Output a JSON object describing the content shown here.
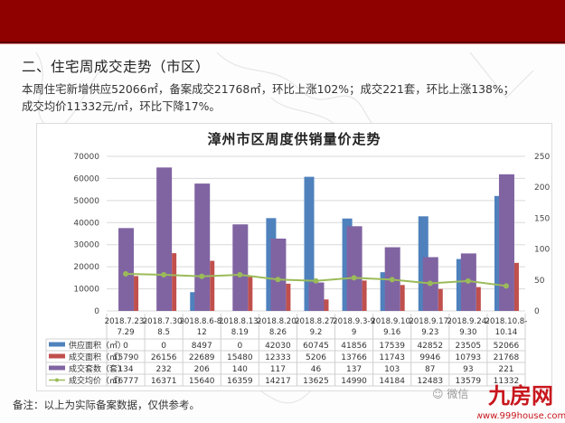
{
  "header": {
    "banner_color": "#8f0000"
  },
  "section": {
    "title": "二、住宅周成交走势（市区）",
    "summary_line1": "本周住宅新增供应52066㎡，备案成交21768㎡，环比上涨102%；成交221套，环比上涨138%；",
    "summary_line2": "成交均价11332元/㎡，环比下降17%。"
  },
  "footer": {
    "note": "备注：以上为实际备案数据，仅供参考。",
    "wechat_label": "微信",
    "logo_text": "九房网",
    "logo_url_text": "www.999house.com"
  },
  "colors": {
    "supply": "#4f81bd",
    "deal_area": "#c0504d",
    "deal_units": "#8064a2",
    "avg_price": "#9bbb59",
    "grid": "#d9d9d9"
  },
  "chart_data": {
    "type": "bar",
    "title": "漳州市区周度供销量价走势",
    "categories": [
      "2018.7.23-7.29",
      "2018.7.30-8.5",
      "2018.8.6-8.12",
      "2018.8.13-8.19",
      "2018.8.20-8.26",
      "2018.8.27-9.2",
      "2018.9.3-9.9",
      "2018.9.10-9.16",
      "2018.9.17-9.23",
      "2018.9.24-9.30",
      "2018.10.8-10.14"
    ],
    "category_lines": [
      [
        "2018.7.23-",
        "7.29"
      ],
      [
        "2018.7.30-",
        "8.5"
      ],
      [
        "2018.8.6-8.",
        "12"
      ],
      [
        "2018.8.13-",
        "8.19"
      ],
      [
        "2018.8.20-",
        "8.26"
      ],
      [
        "2018.8.27-",
        "9.2"
      ],
      [
        "2018.9.3-9",
        "9"
      ],
      [
        "2018.9.10-",
        "9.16"
      ],
      [
        "2018.9.17-",
        "9.23"
      ],
      [
        "2018.9.24-",
        "9.30"
      ],
      [
        "2018.10.8-",
        "10.14"
      ]
    ],
    "series": [
      {
        "name": "供应面积（㎡）",
        "type": "bar",
        "axis": "left",
        "values": [
          0,
          0,
          8497,
          0,
          42030,
          60745,
          41856,
          17539,
          42852,
          23505,
          52066
        ]
      },
      {
        "name": "成交套数（套）",
        "type": "bar",
        "axis": "right",
        "values": [
          134,
          232,
          206,
          140,
          117,
          46,
          137,
          103,
          87,
          93,
          221
        ]
      },
      {
        "name": "成交面积（㎡）",
        "type": "bar",
        "axis": "left",
        "values": [
          15790,
          26156,
          22689,
          15480,
          12333,
          5206,
          13766,
          11743,
          9946,
          10793,
          21768
        ]
      },
      {
        "name": "成交均价（㎡）",
        "type": "line",
        "axis": "left",
        "values": [
          16777,
          16371,
          15640,
          16359,
          14217,
          13625,
          14990,
          14184,
          12483,
          13579,
          11332
        ]
      }
    ],
    "table_order": [
      "供应面积（㎡）",
      "成交面积（㎡）",
      "成交套数（套）",
      "成交均价（㎡）"
    ],
    "left_axis": {
      "ticks": [
        "0",
        "10000",
        "20000",
        "30000",
        "40000",
        "50000",
        "60000",
        "70000"
      ],
      "ylim": [
        0,
        70000
      ]
    },
    "right_axis": {
      "ticks": [
        "0",
        "50",
        "100",
        "150",
        "200",
        "250"
      ],
      "ylim": [
        0,
        250
      ]
    },
    "grid": true,
    "legend_position": "data-table"
  }
}
